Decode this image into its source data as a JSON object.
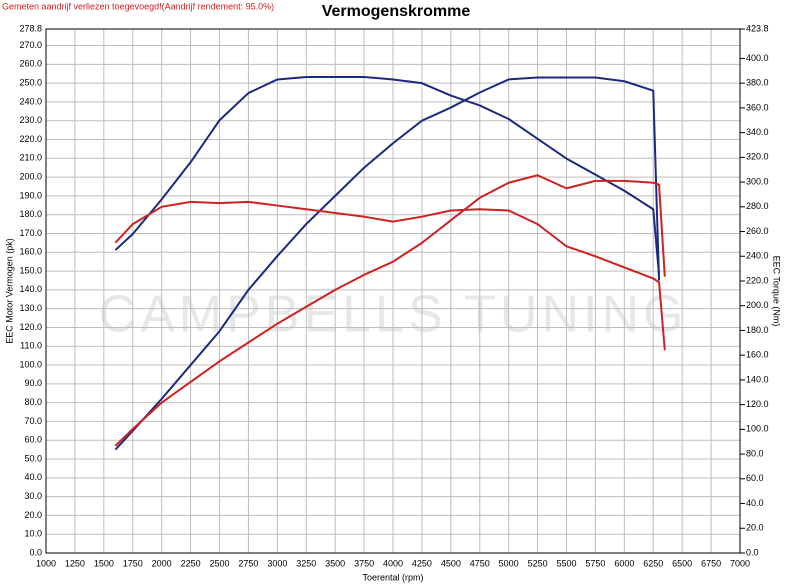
{
  "note": "Gemeten aandrijf verliezen toegevoegd!(Aandrijf rendement: 95.0%)",
  "watermark": "CAMPBELLS TUNING",
  "chart_data": {
    "type": "line",
    "title": "Vermogenskromme",
    "xlabel": "Toerental (rpm)",
    "ylabel": "EEC Motor Vermogen (pk)",
    "y2label": "EEC Torque (Nm)",
    "grid": true,
    "xlim": [
      1000,
      7000
    ],
    "xticks": [
      1000,
      1250,
      1500,
      1750,
      2000,
      2250,
      2500,
      2750,
      3000,
      3250,
      3500,
      3750,
      4000,
      4250,
      4500,
      4750,
      5000,
      5250,
      5500,
      5750,
      6000,
      6250,
      6500,
      6750,
      7000
    ],
    "ylim": [
      0,
      278.8
    ],
    "yticks": [
      {
        "value": 0,
        "label": "0.0"
      },
      {
        "value": 10,
        "label": "10.0"
      },
      {
        "value": 20,
        "label": "20.0"
      },
      {
        "value": 30,
        "label": "30.0"
      },
      {
        "value": 40,
        "label": "40.0"
      },
      {
        "value": 50,
        "label": "50.0"
      },
      {
        "value": 60,
        "label": "60.0"
      },
      {
        "value": 70,
        "label": "70.0"
      },
      {
        "value": 80,
        "label": "80.0"
      },
      {
        "value": 90,
        "label": "90.0"
      },
      {
        "value": 100,
        "label": "100.0"
      },
      {
        "value": 110,
        "label": "110.0"
      },
      {
        "value": 120,
        "label": "120.0"
      },
      {
        "value": 130,
        "label": "130.0"
      },
      {
        "value": 140,
        "label": "140.0"
      },
      {
        "value": 150,
        "label": "150.0"
      },
      {
        "value": 160,
        "label": "160.0"
      },
      {
        "value": 170,
        "label": "170.0"
      },
      {
        "value": 180,
        "label": "180.0"
      },
      {
        "value": 190,
        "label": "190.0"
      },
      {
        "value": 200,
        "label": "200.0"
      },
      {
        "value": 210,
        "label": "210.0"
      },
      {
        "value": 220,
        "label": "220.0"
      },
      {
        "value": 230,
        "label": "230.0"
      },
      {
        "value": 240,
        "label": "240.0"
      },
      {
        "value": 250,
        "label": "250.0"
      },
      {
        "value": 260,
        "label": "260.0"
      },
      {
        "value": 270,
        "label": "270.0"
      },
      {
        "value": 278.8,
        "label": "278.8"
      }
    ],
    "y2lim": [
      0,
      423.8
    ],
    "y2ticks": [
      {
        "value": 0,
        "label": "0.0"
      },
      {
        "value": 20,
        "label": "20.0"
      },
      {
        "value": 40,
        "label": "40.0"
      },
      {
        "value": 60,
        "label": "60.0"
      },
      {
        "value": 80,
        "label": "80.0"
      },
      {
        "value": 100,
        "label": "100.0"
      },
      {
        "value": 120,
        "label": "120.0"
      },
      {
        "value": 140,
        "label": "140.0"
      },
      {
        "value": 160,
        "label": "160.0"
      },
      {
        "value": 180,
        "label": "180.0"
      },
      {
        "value": 200,
        "label": "200.0"
      },
      {
        "value": 220,
        "label": "220.0"
      },
      {
        "value": 240,
        "label": "240.0"
      },
      {
        "value": 260,
        "label": "260.0"
      },
      {
        "value": 280,
        "label": "280.0"
      },
      {
        "value": 300,
        "label": "300.0"
      },
      {
        "value": 320,
        "label": "320.0"
      },
      {
        "value": 340,
        "label": "340.0"
      },
      {
        "value": 360,
        "label": "360.0"
      },
      {
        "value": 380,
        "label": "380.0"
      },
      {
        "value": 400,
        "label": "400.0"
      },
      {
        "value": 423.8,
        "label": "423.8"
      }
    ],
    "x": [
      1600,
      1750,
      2000,
      2250,
      2500,
      2750,
      3000,
      3250,
      3500,
      3750,
      4000,
      4250,
      4500,
      4750,
      5000,
      5250,
      5500,
      5750,
      6000,
      6250,
      6300,
      6350
    ],
    "series": [
      {
        "color": "#1c2a7e",
        "values": [
          55,
          65,
          82,
          100,
          118,
          140,
          158,
          175,
          190,
          205,
          218,
          230,
          237,
          245,
          252,
          253,
          253,
          253,
          251,
          246,
          145,
          null
        ]
      },
      {
        "color": "#1c2a7e",
        "axis": "y2",
        "values": [
          245,
          258,
          286,
          316,
          350,
          372,
          383,
          385,
          385,
          385,
          383,
          380,
          370,
          362,
          351,
          335,
          319,
          306,
          293,
          278,
          225,
          null
        ]
      },
      {
        "color": "#cc2222",
        "values": [
          57,
          66,
          80,
          91,
          102,
          112,
          122,
          131,
          140,
          148,
          155,
          165,
          177,
          189,
          197,
          201,
          194,
          198,
          198,
          197,
          196,
          147
        ]
      },
      {
        "color": "#cc2222",
        "axis": "y2",
        "values": [
          251,
          266,
          280,
          284,
          283,
          284,
          281,
          278,
          275,
          272,
          268,
          272,
          277,
          278,
          277,
          266,
          248,
          240,
          231,
          222,
          219,
          164
        ]
      }
    ]
  }
}
